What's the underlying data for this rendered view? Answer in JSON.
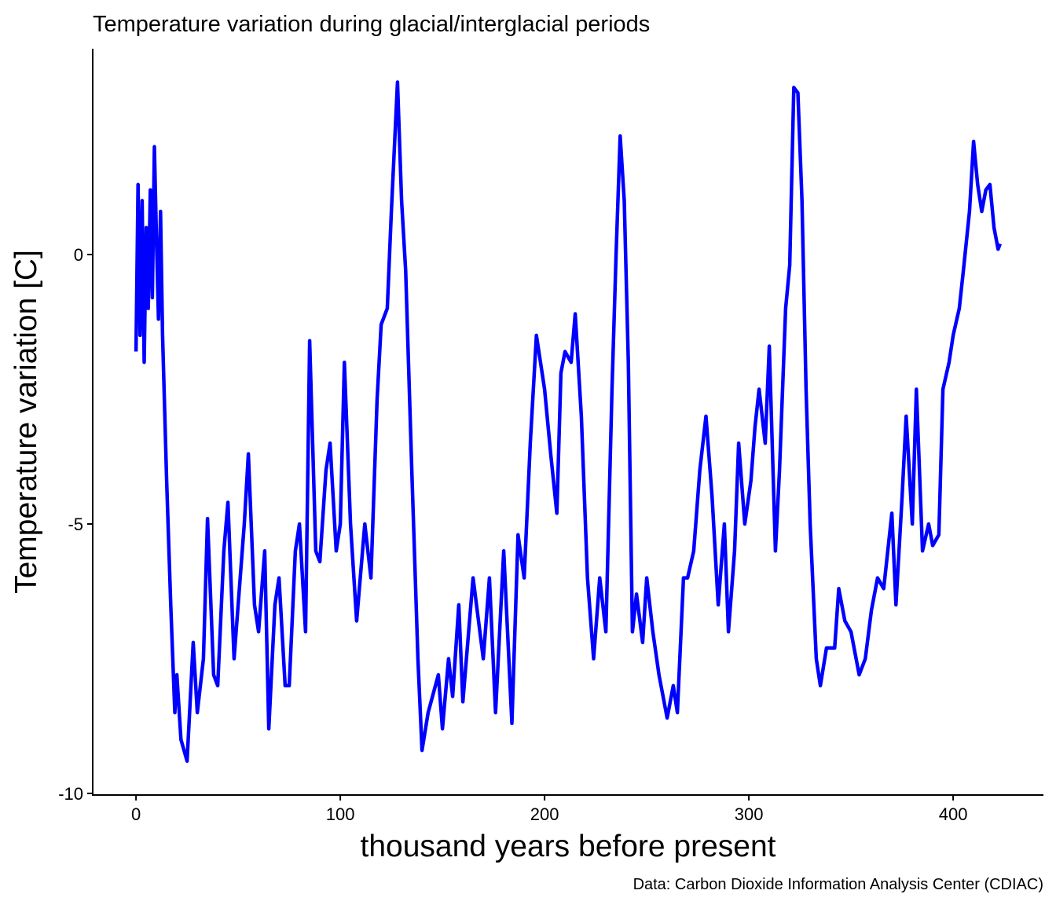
{
  "chart_data": {
    "type": "line",
    "title": "Temperature variation during glacial/interglacial periods",
    "x_label": "thousand years before present",
    "y_label": "Temperature variation [C]",
    "caption": "Data: Carbon Dioxide Information Analysis Center (CDIAC)",
    "color": "#0000ff",
    "x": [
      0,
      1,
      2,
      3,
      4,
      5,
      6,
      7,
      8,
      9,
      10,
      11,
      12,
      13,
      15,
      17,
      19,
      20,
      22,
      25,
      28,
      30,
      33,
      35,
      38,
      40,
      43,
      45,
      48,
      50,
      53,
      55,
      58,
      60,
      63,
      65,
      68,
      70,
      73,
      75,
      78,
      80,
      83,
      85,
      88,
      90,
      93,
      95,
      98,
      100,
      102,
      105,
      108,
      112,
      115,
      118,
      120,
      123,
      125,
      128,
      130,
      132,
      135,
      138,
      140,
      143,
      148,
      150,
      153,
      155,
      158,
      160,
      165,
      170,
      173,
      176,
      180,
      184,
      187,
      190,
      193,
      196,
      200,
      203,
      206,
      208,
      210,
      213,
      215,
      218,
      221,
      224,
      227,
      230,
      233,
      235,
      237,
      239,
      241,
      243,
      245,
      248,
      250,
      253,
      256,
      260,
      263,
      265,
      268,
      270,
      273,
      276,
      279,
      282,
      285,
      288,
      290,
      293,
      295,
      298,
      301,
      303,
      305,
      308,
      310,
      313,
      315,
      318,
      320,
      322,
      324,
      326,
      328,
      330,
      333,
      335,
      338,
      342,
      344,
      347,
      350,
      354,
      357,
      360,
      363,
      366,
      370,
      372,
      375,
      377,
      380,
      382,
      385,
      388,
      390,
      393,
      395,
      398,
      400,
      403,
      405,
      408,
      410,
      412,
      414,
      416,
      418,
      420,
      422,
      423
    ],
    "values": [
      -1.8,
      1.3,
      -1.5,
      1,
      -2,
      0.5,
      -1,
      1.2,
      -0.8,
      2,
      0.3,
      -1.2,
      0.8,
      -1.5,
      -4.2,
      -6.5,
      -8.5,
      -7.8,
      -9,
      -9.4,
      -7.2,
      -8.5,
      -7.5,
      -4.9,
      -7.8,
      -8,
      -5.5,
      -4.6,
      -7.5,
      -6.5,
      -5,
      -3.7,
      -6.5,
      -7,
      -5.5,
      -8.8,
      -6.5,
      -6,
      -8,
      -8,
      -5.5,
      -5,
      -7,
      -1.6,
      -5.5,
      -5.7,
      -4,
      -3.5,
      -5.5,
      -5,
      -2,
      -5,
      -6.8,
      -5,
      -6,
      -2.7,
      -1.3,
      -1,
      0.8,
      3.2,
      1,
      -0.3,
      -4,
      -7.5,
      -9.2,
      -8.5,
      -7.8,
      -8.8,
      -7.5,
      -8.2,
      -6.5,
      -8.3,
      -6,
      -7.5,
      -6,
      -8.5,
      -5.5,
      -8.7,
      -5.2,
      -6,
      -3.5,
      -1.5,
      -2.5,
      -3.7,
      -4.8,
      -2.2,
      -1.8,
      -2,
      -1.1,
      -3,
      -6,
      -7.5,
      -6,
      -7,
      -2.5,
      0,
      2.2,
      1,
      -2,
      -7,
      -6.3,
      -7.2,
      -6,
      -7,
      -7.8,
      -8.6,
      -8,
      -8.5,
      -6,
      -6,
      -5.5,
      -4,
      -3,
      -4.5,
      -6.5,
      -5,
      -7,
      -5.5,
      -3.5,
      -5,
      -4.2,
      -3.2,
      -2.5,
      -3.5,
      -1.7,
      -5.5,
      -4,
      -1,
      -0.2,
      3.1,
      3,
      1,
      -2.5,
      -5,
      -7.5,
      -8,
      -7.3,
      -7.3,
      -6.2,
      -6.8,
      -7,
      -7.8,
      -7.5,
      -6.6,
      -6,
      -6.2,
      -4.8,
      -6.5,
      -4.5,
      -3,
      -5,
      -2.5,
      -5.5,
      -5,
      -5.4,
      -5.2,
      -2.5,
      -2,
      -1.5,
      -1,
      -0.3,
      0.8,
      2.1,
      1.3,
      0.8,
      1.2,
      1.3,
      0.5,
      0.1,
      0.2
    ],
    "xlim": [
      -21.2,
      444.2
    ],
    "ylim": [
      -10.03,
      3.82
    ],
    "xticks": [
      0,
      100,
      200,
      300,
      400
    ],
    "yticks": [
      -10,
      -5,
      0
    ]
  }
}
